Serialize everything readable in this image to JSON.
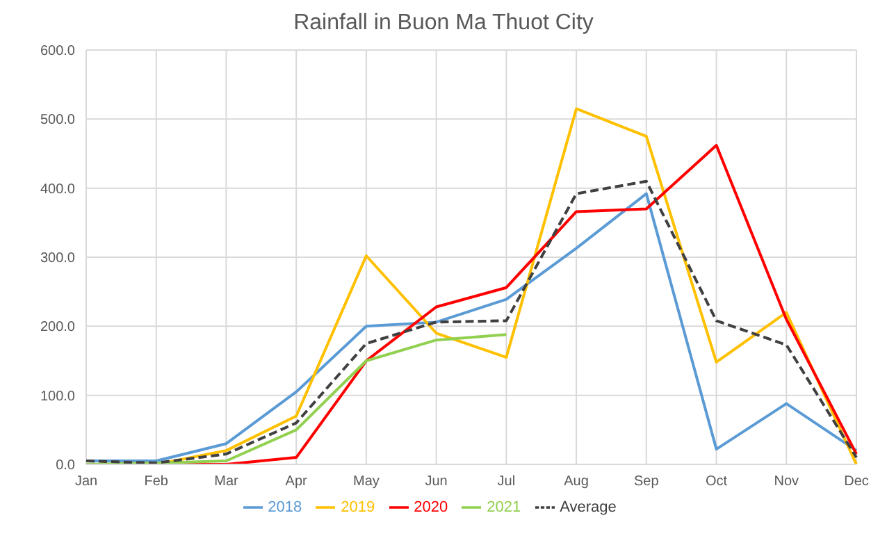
{
  "chart_data": {
    "type": "line",
    "title": "Rainfall in Buon Ma Thuot City",
    "categories": [
      "Jan",
      "Feb",
      "Mar",
      "Apr",
      "May",
      "Jun",
      "Jul",
      "Aug",
      "Sep",
      "Oct",
      "Nov",
      "Dec"
    ],
    "series": [
      {
        "name": "2018",
        "color": "#5b9bd5",
        "values": [
          5,
          5,
          30,
          105,
          200,
          206,
          239,
          313,
          392,
          22,
          88,
          20
        ]
      },
      {
        "name": "2019",
        "color": "#ffc000",
        "values": [
          0,
          0,
          20,
          70,
          302,
          190,
          155,
          515,
          475,
          148,
          220,
          0
        ]
      },
      {
        "name": "2020",
        "color": "#ff0000",
        "values": [
          0,
          0,
          0,
          10,
          150,
          228,
          256,
          366,
          370,
          462,
          210,
          15
        ]
      },
      {
        "name": "2021",
        "color": "#92d050",
        "values": [
          0,
          2,
          5,
          50,
          150,
          180,
          188,
          null,
          null,
          null,
          null,
          null
        ]
      },
      {
        "name": "Average",
        "color": "#404040",
        "line_style": "dashed",
        "values": [
          5,
          2,
          15,
          60,
          175,
          206,
          208,
          392,
          410,
          208,
          173,
          10
        ]
      }
    ],
    "ylim": [
      0,
      600
    ],
    "yticks": [
      {
        "value": 0,
        "label": "0.0"
      },
      {
        "value": 100,
        "label": "100.0"
      },
      {
        "value": 200,
        "label": "200.0"
      },
      {
        "value": 300,
        "label": "300.0"
      },
      {
        "value": 400,
        "label": "400.0"
      },
      {
        "value": 500,
        "label": "500.0"
      },
      {
        "value": 600,
        "label": "600.0"
      }
    ],
    "grid": true,
    "legend": "bottom",
    "marker": "none",
    "line_style": "solid"
  }
}
